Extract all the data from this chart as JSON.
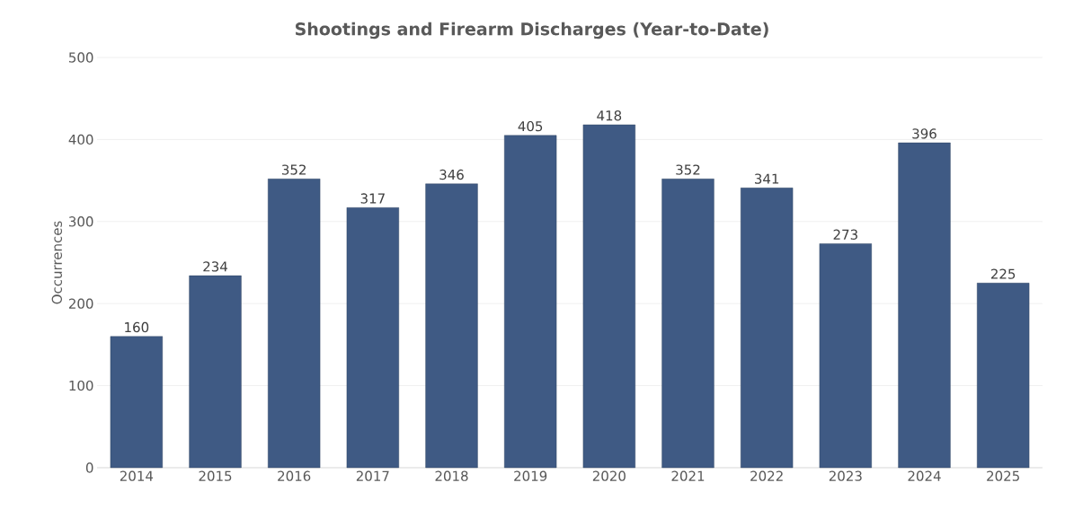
{
  "chart_data": {
    "type": "bar",
    "title": "Shootings and Firearm Discharges (Year-to-Date)",
    "ylabel": "Occurrences",
    "categories": [
      "2014",
      "2015",
      "2016",
      "2017",
      "2018",
      "2019",
      "2020",
      "2021",
      "2022",
      "2023",
      "2024",
      "2025"
    ],
    "values": [
      160,
      234,
      352,
      317,
      346,
      405,
      418,
      352,
      341,
      273,
      396,
      225
    ],
    "color": "#3f5a84",
    "ylim": [
      0,
      500
    ],
    "yticks": [
      0,
      100,
      200,
      300,
      400,
      500
    ],
    "grid": "y",
    "data_labels": true
  }
}
